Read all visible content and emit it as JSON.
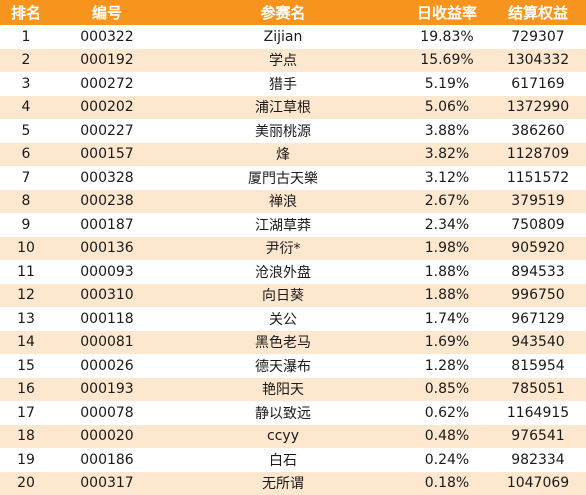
{
  "headers": {
    "rank": "排名",
    "code": "编号",
    "name": "参赛名",
    "daily_return": "日收益率",
    "equity": "结算权益"
  },
  "rows": [
    {
      "rank": "1",
      "code": "000322",
      "name": "Zijian",
      "daily_return": "19.83%",
      "equity": "729307"
    },
    {
      "rank": "2",
      "code": "000192",
      "name": "学点",
      "daily_return": "15.69%",
      "equity": "1304332"
    },
    {
      "rank": "3",
      "code": "000272",
      "name": "猎手",
      "daily_return": "5.19%",
      "equity": "617169"
    },
    {
      "rank": "4",
      "code": "000202",
      "name": "浦江草根",
      "daily_return": "5.06%",
      "equity": "1372990"
    },
    {
      "rank": "5",
      "code": "000227",
      "name": "美丽桃源",
      "daily_return": "3.88%",
      "equity": "386260"
    },
    {
      "rank": "6",
      "code": "000157",
      "name": "烽",
      "daily_return": "3.82%",
      "equity": "1128709"
    },
    {
      "rank": "7",
      "code": "000328",
      "name": "厦門古天樂",
      "daily_return": "3.12%",
      "equity": "1151572"
    },
    {
      "rank": "8",
      "code": "000238",
      "name": "禅浪",
      "daily_return": "2.67%",
      "equity": "379519"
    },
    {
      "rank": "9",
      "code": "000187",
      "name": "江湖草莽",
      "daily_return": "2.34%",
      "equity": "750809"
    },
    {
      "rank": "10",
      "code": "000136",
      "name": "尹衍*",
      "daily_return": "1.98%",
      "equity": "905920"
    },
    {
      "rank": "11",
      "code": "000093",
      "name": "沧浪外盘",
      "daily_return": "1.88%",
      "equity": "894533"
    },
    {
      "rank": "12",
      "code": "000310",
      "name": "向日葵",
      "daily_return": "1.88%",
      "equity": "996750"
    },
    {
      "rank": "13",
      "code": "000118",
      "name": "关公",
      "daily_return": "1.74%",
      "equity": "967129"
    },
    {
      "rank": "14",
      "code": "000081",
      "name": "黑色老马",
      "daily_return": "1.69%",
      "equity": "943540"
    },
    {
      "rank": "15",
      "code": "000026",
      "name": "德天瀑布",
      "daily_return": "1.28%",
      "equity": "815954"
    },
    {
      "rank": "16",
      "code": "000193",
      "name": "艳阳天",
      "daily_return": "0.85%",
      "equity": "785051"
    },
    {
      "rank": "17",
      "code": "000078",
      "name": "静以致远",
      "daily_return": "0.62%",
      "equity": "1164915"
    },
    {
      "rank": "18",
      "code": "000020",
      "name": "ccyy",
      "daily_return": "0.48%",
      "equity": "976541"
    },
    {
      "rank": "19",
      "code": "000186",
      "name": "白石",
      "daily_return": "0.24%",
      "equity": "982334"
    },
    {
      "rank": "20",
      "code": "000317",
      "name": "无所谓",
      "daily_return": "0.18%",
      "equity": "1047069"
    }
  ],
  "colors": {
    "header_bg": "#f7941d",
    "header_text": "#ffffff",
    "stripe_bg": "#fde8cf"
  }
}
